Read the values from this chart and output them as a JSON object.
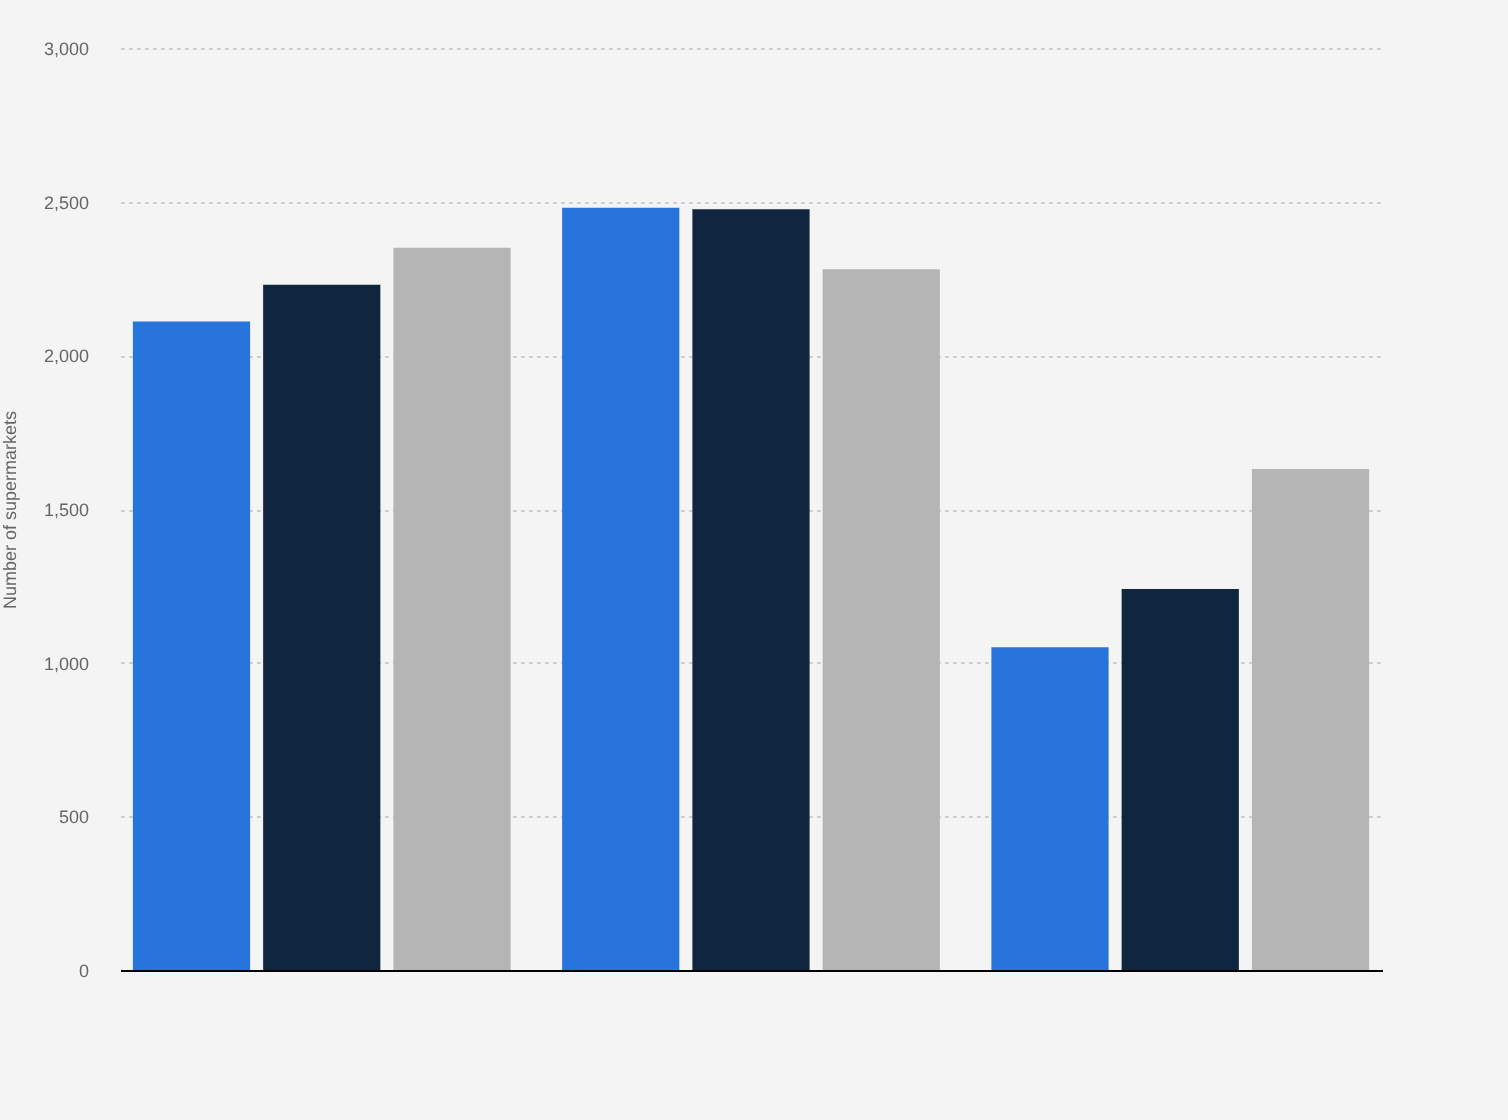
{
  "chart_data": {
    "type": "bar",
    "ylabel": "Number of supermarkets",
    "categories": [
      null,
      null,
      null
    ],
    "series": [
      {
        "color": "#2775dc",
        "values": [
          2110,
          2480,
          1050
        ]
      },
      {
        "color": "#10263e",
        "values": [
          2230,
          2475,
          1240
        ]
      },
      {
        "color": "#b5b5b5",
        "values": [
          2350,
          2280,
          1630
        ]
      }
    ],
    "ylim": [
      0,
      3000
    ],
    "yticks": [
      0,
      {
        "value": 500,
        "label": "500"
      },
      {
        "value": 1000,
        "label": "1,000"
      },
      {
        "value": 1500,
        "label": "1,500"
      },
      {
        "value": 2000,
        "label": "2,000"
      },
      {
        "value": 2500,
        "label": "2,500"
      },
      {
        "value": 3000,
        "label": "3,000"
      }
    ],
    "grid": "y",
    "legend": false,
    "tick_labels": "y"
  }
}
